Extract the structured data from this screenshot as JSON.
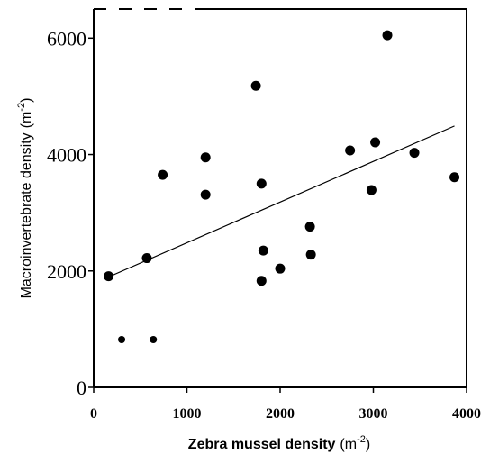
{
  "chart_data": {
    "type": "scatter",
    "title": "",
    "xlabel_main": "Zebra mussel density",
    "xlabel_unit": "(m",
    "xlabel_exp": "-2",
    "xlabel_close": ")",
    "ylabel_main": "Macroinvertebrate density",
    "ylabel_unit": "(m",
    "ylabel_exp": "-2",
    "ylabel_close": ")",
    "xlim": [
      0,
      4000
    ],
    "ylim": [
      0,
      6500
    ],
    "x_ticks": [
      {
        "value": 0,
        "label": "0"
      },
      {
        "value": 1000,
        "label": "1000"
      },
      {
        "value": 2000,
        "label": "2000"
      },
      {
        "value": 3000,
        "label": "3000"
      },
      {
        "value": 4000,
        "label": "4000"
      }
    ],
    "y_ticks": [
      {
        "value": 0,
        "label": "0"
      },
      {
        "value": 2000,
        "label": "2000"
      },
      {
        "value": 4000,
        "label": "4000"
      },
      {
        "value": 6000,
        "label": "6000"
      }
    ],
    "grid": false,
    "trendline": {
      "x": [
        150,
        3870
      ],
      "y": [
        1890,
        4490
      ]
    },
    "points": [
      {
        "x": 160,
        "y": 1910,
        "size": "large"
      },
      {
        "x": 300,
        "y": 820,
        "size": "small"
      },
      {
        "x": 570,
        "y": 2220,
        "size": "large"
      },
      {
        "x": 640,
        "y": 820,
        "size": "small"
      },
      {
        "x": 740,
        "y": 3650,
        "size": "large"
      },
      {
        "x": 1200,
        "y": 3950,
        "size": "large"
      },
      {
        "x": 1200,
        "y": 3310,
        "size": "large"
      },
      {
        "x": 1740,
        "y": 5180,
        "size": "large"
      },
      {
        "x": 1800,
        "y": 3500,
        "size": "large"
      },
      {
        "x": 1800,
        "y": 1830,
        "size": "large"
      },
      {
        "x": 1820,
        "y": 2350,
        "size": "large"
      },
      {
        "x": 2000,
        "y": 2040,
        "size": "large"
      },
      {
        "x": 2320,
        "y": 2760,
        "size": "large"
      },
      {
        "x": 2330,
        "y": 2280,
        "size": "large"
      },
      {
        "x": 2750,
        "y": 4070,
        "size": "large"
      },
      {
        "x": 2980,
        "y": 3390,
        "size": "large"
      },
      {
        "x": 3020,
        "y": 4210,
        "size": "large"
      },
      {
        "x": 3150,
        "y": 6050,
        "size": "large"
      },
      {
        "x": 3440,
        "y": 4030,
        "size": "large"
      },
      {
        "x": 3870,
        "y": 3610,
        "size": "large"
      }
    ]
  }
}
